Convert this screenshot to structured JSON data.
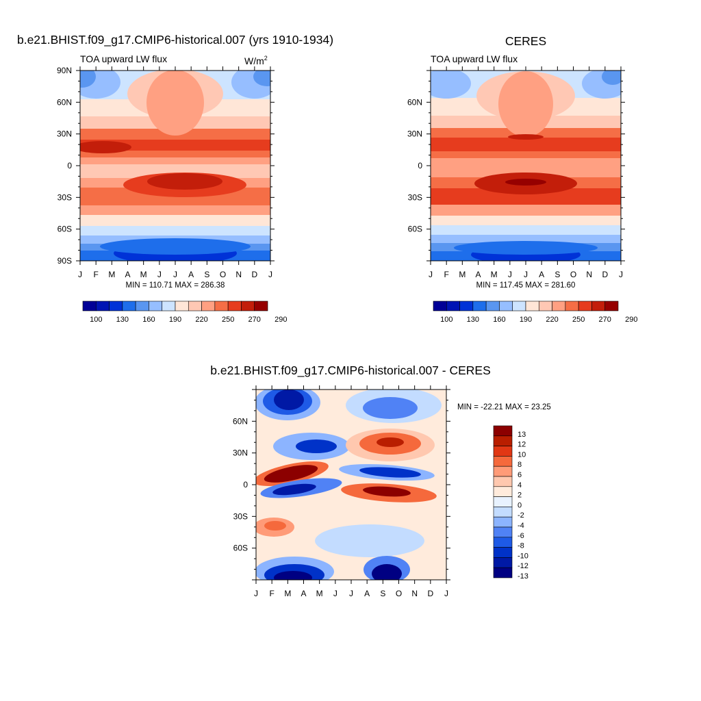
{
  "palette": {
    "abs": [
      "#000096",
      "#0014b4",
      "#0032d7",
      "#1e6eeb",
      "#5a96f0",
      "#96beff",
      "#cde4ff",
      "#ffe6d7",
      "#ffc8b4",
      "#ffa082",
      "#f56e46",
      "#e63c1e",
      "#c31e0a",
      "#960000"
    ],
    "diff": [
      "#000082",
      "#0019a5",
      "#0032c8",
      "#1e5ae6",
      "#5082f5",
      "#8cb4ff",
      "#c3dcff",
      "#e8f2ff",
      "#ffebdc",
      "#ffc8af",
      "#ff9b78",
      "#f5693c",
      "#e13714",
      "#b91e00",
      "#8c0000"
    ]
  },
  "panels": {
    "model": {
      "title": "b.e21.BHIST.f09_g17.CMIP6-historical.007 (yrs 1910-1934)",
      "subtitle_left": "TOA upward LW flux",
      "units_base": "W/m",
      "units_exp": "2",
      "stats": "MIN = 110.71 MAX = 286.38",
      "y_ticks": [
        "90N",
        "60N",
        "30N",
        "0",
        "30S",
        "60S",
        "90S"
      ]
    },
    "obs": {
      "title": "CERES",
      "subtitle_left": "TOA upward LW flux",
      "stats": "MIN = 117.45 MAX = 281.60",
      "y_ticks": [
        "60N",
        "30N",
        "0",
        "30S",
        "60S"
      ]
    },
    "diff": {
      "title": "b.e21.BHIST.f09_g17.CMIP6-historical.007 - CERES",
      "stats": "MIN = -22.21 MAX =  23.25",
      "y_ticks": [
        "60N",
        "30N",
        "0",
        "30S",
        "60S"
      ]
    }
  },
  "months": [
    "J",
    "F",
    "M",
    "A",
    "M",
    "J",
    "J",
    "A",
    "S",
    "O",
    "N",
    "D",
    "J"
  ],
  "colorbar_abs_labels": [
    "100",
    "130",
    "160",
    "190",
    "220",
    "250",
    "270",
    "290"
  ],
  "colorbar_diff_labels": [
    "13",
    "12",
    "10",
    "8",
    "6",
    "4",
    "2",
    "0",
    "-2",
    "-4",
    "-6",
    "-8",
    "-10",
    "-12",
    "-13"
  ],
  "chart_data": [
    {
      "type": "heatmap",
      "title": "b.e21.BHIST.f09_g17.CMIP6-historical.007 (yrs 1910-1934)",
      "subtitle": "TOA upward LW flux",
      "units": "W/m2",
      "x": [
        "J",
        "F",
        "M",
        "A",
        "M",
        "J",
        "J",
        "A",
        "S",
        "O",
        "N",
        "D",
        "J"
      ],
      "y_ticks": [
        "90N",
        "60N",
        "30N",
        "0",
        "30S",
        "60S",
        "90S"
      ],
      "ylim": [
        -90,
        90
      ],
      "min": 110.71,
      "max": 286.38,
      "colorbar_levels": [
        100,
        130,
        160,
        190,
        220,
        250,
        270,
        290
      ]
    },
    {
      "type": "heatmap",
      "title": "CERES",
      "subtitle": "TOA upward LW flux",
      "units": "W/m2",
      "x": [
        "J",
        "F",
        "M",
        "A",
        "M",
        "J",
        "J",
        "A",
        "S",
        "O",
        "N",
        "D",
        "J"
      ],
      "y_ticks": [
        "60N",
        "30N",
        "0",
        "30S",
        "60S"
      ],
      "min": 117.45,
      "max": 281.6,
      "colorbar_levels": [
        100,
        130,
        160,
        190,
        220,
        250,
        270,
        290
      ]
    },
    {
      "type": "heatmap",
      "title": "b.e21.BHIST.f09_g17.CMIP6-historical.007 - CERES",
      "x": [
        "J",
        "F",
        "M",
        "A",
        "M",
        "J",
        "J",
        "A",
        "S",
        "O",
        "N",
        "D",
        "J"
      ],
      "y_ticks": [
        "60N",
        "30N",
        "0",
        "30S",
        "60S"
      ],
      "min": -22.21,
      "max": 23.25,
      "colorbar_levels": [
        -13,
        -12,
        -10,
        -8,
        -6,
        -4,
        -2,
        0,
        2,
        4,
        6,
        8,
        10,
        12,
        13
      ]
    }
  ]
}
